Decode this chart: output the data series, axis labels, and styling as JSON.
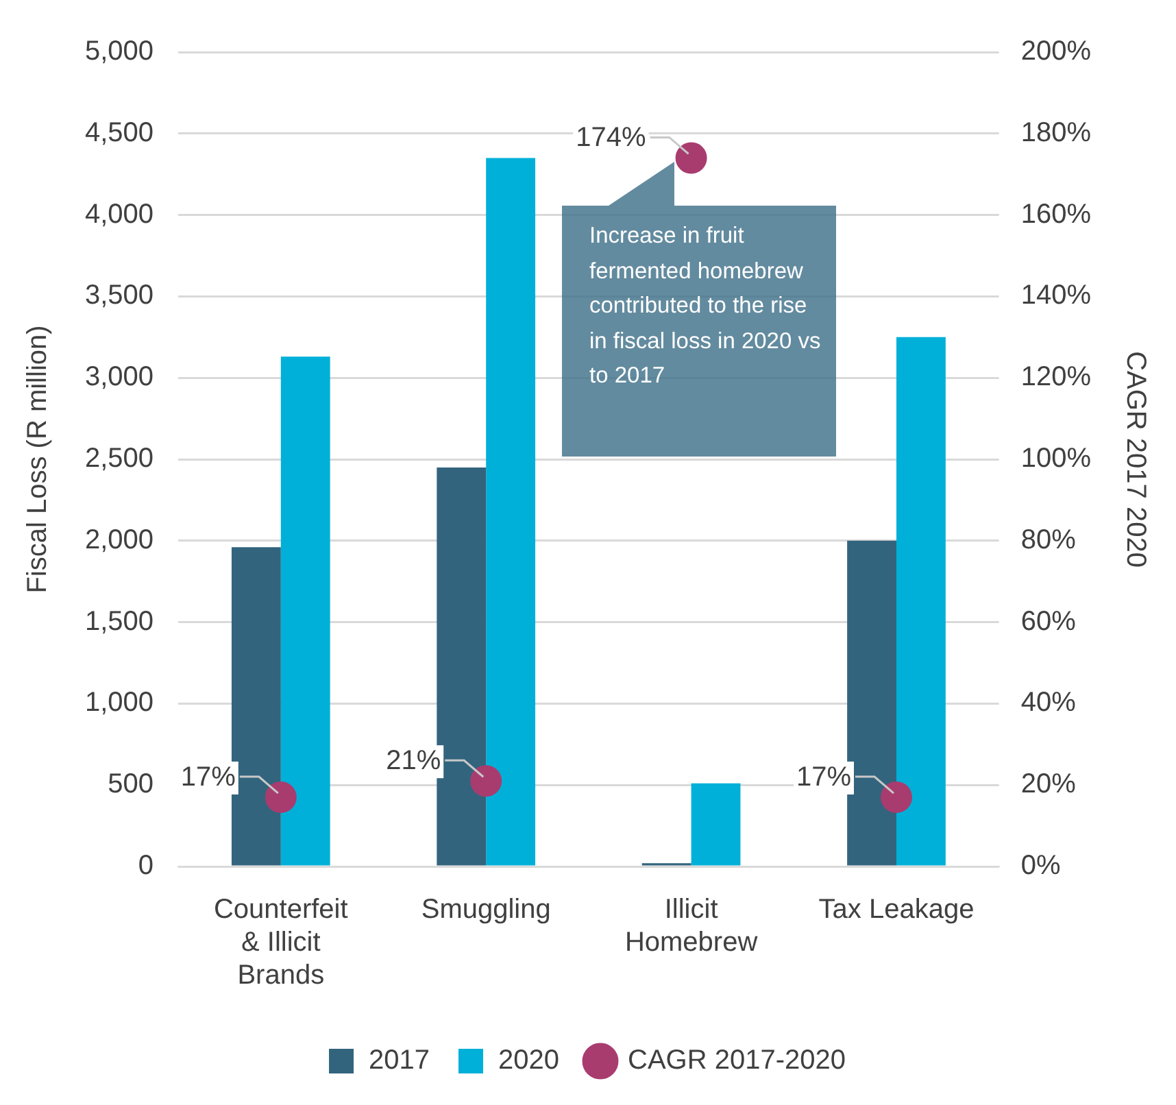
{
  "chart_data": {
    "type": "bar",
    "categories": [
      "Counterfeit & Illicit Brands",
      "Smuggling",
      "Illicit Homebrew",
      "Tax Leakage"
    ],
    "series": [
      {
        "name": "2017",
        "color": "#33647e",
        "values": [
          1960,
          2450,
          20,
          2000
        ]
      },
      {
        "name": "2020",
        "color": "#00b0d8",
        "values": [
          3130,
          4350,
          510,
          3250
        ]
      },
      {
        "name": "CAGR 2017-2020",
        "type": "scatter",
        "axis": "y2",
        "marker": "circle",
        "color": "#a93c6f",
        "values": [
          17,
          21,
          174,
          17
        ],
        "value_labels": [
          "17%",
          "21%",
          "174%",
          "17%"
        ]
      }
    ],
    "ylabel": "Fiscal Loss (R million)",
    "y2label": "CAGR 2017 2020",
    "ylim": [
      0,
      5000
    ],
    "yticks": [
      {
        "value": 0,
        "label": "0"
      },
      {
        "value": 500,
        "label": "500"
      },
      {
        "value": 1000,
        "label": "1,000"
      },
      {
        "value": 1500,
        "label": "1,500"
      },
      {
        "value": 2000,
        "label": "2,000"
      },
      {
        "value": 2500,
        "label": "2,500"
      },
      {
        "value": 3000,
        "label": "3,000"
      },
      {
        "value": 3500,
        "label": "3,500"
      },
      {
        "value": 4000,
        "label": "4,000"
      },
      {
        "value": 4500,
        "label": "4,500"
      },
      {
        "value": 5000,
        "label": "5,000"
      }
    ],
    "y2lim": [
      0,
      200
    ],
    "y2ticks": [
      {
        "value": 0,
        "label": "0%"
      },
      {
        "value": 20,
        "label": "20%"
      },
      {
        "value": 40,
        "label": "40%"
      },
      {
        "value": 60,
        "label": "60%"
      },
      {
        "value": 80,
        "label": "80%"
      },
      {
        "value": 100,
        "label": "100%"
      },
      {
        "value": 120,
        "label": "120%"
      },
      {
        "value": 140,
        "label": "140%"
      },
      {
        "value": 160,
        "label": "160%"
      },
      {
        "value": 180,
        "label": "180%"
      },
      {
        "value": 200,
        "label": "200%"
      }
    ],
    "annotations": [
      "Increase in fruit fermented homebrew contributed to the rise in fiscal loss in 2020 vs to 2017"
    ],
    "grid": "y",
    "legend": "bottom"
  }
}
